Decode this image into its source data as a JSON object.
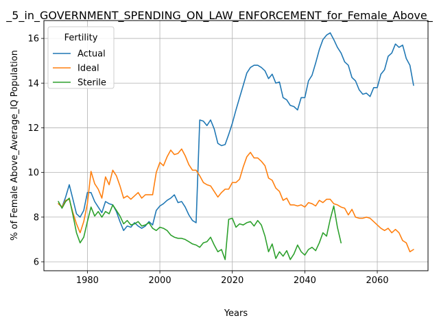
{
  "chart_data": {
    "type": "line",
    "title": "_5_in_GOVERNMENT_SPENDING_ON_LAW_ENFORCEMENT_for_Female_Above_",
    "xlabel": "Years",
    "ylabel": "% of Female Above_Average_IQ Population",
    "xlim": [
      1968,
      2074
    ],
    "ylim": [
      5.6,
      16.8
    ],
    "xticks": [
      1980,
      2000,
      2020,
      2040,
      2060
    ],
    "yticks": [
      6,
      8,
      10,
      12,
      14,
      16
    ],
    "grid": true,
    "legend": {
      "title": "Fertility",
      "placement": "top-left"
    },
    "series": [
      {
        "name": "Actual",
        "color": "#1f77b4",
        "x": [
          1972,
          1973,
          1974,
          1975,
          1976,
          1977,
          1978,
          1979,
          1980,
          1981,
          1982,
          1983,
          1984,
          1985,
          1986,
          1987,
          1988,
          1989,
          1990,
          1991,
          1992,
          1993,
          1994,
          1995,
          1996,
          1997,
          1998,
          1999,
          2000,
          2001,
          2002,
          2003,
          2004,
          2005,
          2006,
          2007,
          2008,
          2009,
          2010,
          2011,
          2012,
          2013,
          2014,
          2015,
          2016,
          2017,
          2018,
          2019,
          2020,
          2021,
          2022,
          2023,
          2024,
          2025,
          2026,
          2027,
          2028,
          2029,
          2030,
          2031,
          2032,
          2033,
          2034,
          2035,
          2036,
          2037,
          2038,
          2039,
          2040,
          2041,
          2042,
          2043,
          2044,
          2045,
          2046,
          2047,
          2048,
          2049,
          2050,
          2051,
          2052,
          2053,
          2054,
          2055,
          2056,
          2057,
          2058,
          2059,
          2060,
          2061,
          2062,
          2063,
          2064,
          2065,
          2066,
          2067,
          2068,
          2069,
          2070
        ],
        "values": [
          8.6,
          8.45,
          8.9,
          9.45,
          8.8,
          8.15,
          8.0,
          8.3,
          9.1,
          9.1,
          8.7,
          8.45,
          8.2,
          8.7,
          8.6,
          8.55,
          8.25,
          7.8,
          7.4,
          7.6,
          7.55,
          7.75,
          7.6,
          7.5,
          7.6,
          7.8,
          7.65,
          8.3,
          8.5,
          8.6,
          8.75,
          8.85,
          9.0,
          8.65,
          8.7,
          8.45,
          8.1,
          7.85,
          7.75,
          12.35,
          12.3,
          12.1,
          12.35,
          11.95,
          11.3,
          11.2,
          11.25,
          11.7,
          12.2,
          12.8,
          13.35,
          13.9,
          14.45,
          14.7,
          14.8,
          14.8,
          14.7,
          14.55,
          14.2,
          14.4,
          14.0,
          14.05,
          13.35,
          13.25,
          13.0,
          12.95,
          12.8,
          13.35,
          13.35,
          14.1,
          14.35,
          14.9,
          15.5,
          15.95,
          16.15,
          16.25,
          15.95,
          15.6,
          15.35,
          14.95,
          14.8,
          14.25,
          14.1,
          13.7,
          13.5,
          13.55,
          13.4,
          13.8,
          13.8,
          14.4,
          14.6,
          15.2,
          15.35,
          15.75,
          15.6,
          15.7,
          15.1,
          14.8,
          13.9
        ]
      },
      {
        "name": "Ideal",
        "color": "#ff7f0e",
        "x": [
          1972,
          1973,
          1974,
          1975,
          1976,
          1977,
          1978,
          1979,
          1980,
          1981,
          1982,
          1983,
          1984,
          1985,
          1986,
          1987,
          1988,
          1989,
          1990,
          1991,
          1992,
          1993,
          1994,
          1995,
          1996,
          1997,
          1998,
          1999,
          2000,
          2001,
          2002,
          2003,
          2004,
          2005,
          2006,
          2007,
          2008,
          2009,
          2010,
          2011,
          2012,
          2013,
          2014,
          2015,
          2016,
          2017,
          2018,
          2019,
          2020,
          2021,
          2022,
          2023,
          2024,
          2025,
          2026,
          2027,
          2028,
          2029,
          2030,
          2031,
          2032,
          2033,
          2034,
          2035,
          2036,
          2037,
          2038,
          2039,
          2040,
          2041,
          2042,
          2043,
          2044,
          2045,
          2046,
          2047,
          2048,
          2049,
          2050,
          2051,
          2052,
          2053,
          2054,
          2055,
          2056,
          2057,
          2058,
          2059,
          2060,
          2061,
          2062,
          2063,
          2064,
          2065,
          2066,
          2067,
          2068,
          2069,
          2070
        ],
        "values": [
          8.6,
          8.45,
          8.75,
          8.8,
          8.2,
          7.7,
          7.3,
          7.8,
          8.6,
          10.05,
          9.5,
          9.25,
          8.85,
          9.8,
          9.45,
          10.1,
          9.85,
          9.4,
          8.85,
          8.95,
          8.8,
          8.95,
          9.1,
          8.85,
          9.0,
          9.0,
          9.0,
          10.0,
          10.45,
          10.3,
          10.7,
          11.0,
          10.8,
          10.85,
          11.05,
          10.75,
          10.35,
          10.1,
          10.1,
          9.85,
          9.55,
          9.45,
          9.4,
          9.15,
          8.9,
          9.1,
          9.25,
          9.25,
          9.55,
          9.55,
          9.7,
          10.25,
          10.7,
          10.9,
          10.65,
          10.65,
          10.5,
          10.3,
          9.75,
          9.65,
          9.3,
          9.15,
          8.75,
          8.85,
          8.55,
          8.55,
          8.5,
          8.55,
          8.45,
          8.65,
          8.6,
          8.5,
          8.75,
          8.65,
          8.8,
          8.8,
          8.6,
          8.55,
          8.45,
          8.4,
          8.1,
          8.35,
          8.0,
          7.95,
          7.95,
          8.0,
          7.95,
          7.8,
          7.65,
          7.5,
          7.4,
          7.5,
          7.3,
          7.45,
          7.3,
          6.95,
          6.85,
          6.45,
          6.55
        ]
      },
      {
        "name": "Sterile",
        "color": "#2ca02c",
        "x": [
          1972,
          1973,
          1974,
          1975,
          1976,
          1977,
          1978,
          1979,
          1980,
          1981,
          1982,
          1983,
          1984,
          1985,
          1986,
          1987,
          1988,
          1989,
          1990,
          1991,
          1992,
          1993,
          1994,
          1995,
          1996,
          1997,
          1998,
          1999,
          2000,
          2001,
          2002,
          2003,
          2004,
          2005,
          2006,
          2007,
          2008,
          2009,
          2010,
          2011,
          2012,
          2013,
          2014,
          2015,
          2016,
          2017,
          2018,
          2019,
          2020,
          2021,
          2022,
          2023,
          2024,
          2025,
          2026,
          2027,
          2028,
          2029,
          2030,
          2031,
          2032,
          2033,
          2034,
          2035,
          2036,
          2037,
          2038,
          2039,
          2040,
          2041,
          2042,
          2043,
          2044,
          2045,
          2046,
          2047,
          2048,
          2049,
          2050
        ],
        "values": [
          8.7,
          8.4,
          8.7,
          8.85,
          8.1,
          7.3,
          6.85,
          7.1,
          7.8,
          8.45,
          8.05,
          8.25,
          8.0,
          8.25,
          8.15,
          8.55,
          8.3,
          8.05,
          7.7,
          7.85,
          7.65,
          7.7,
          7.8,
          7.6,
          7.65,
          7.75,
          7.5,
          7.4,
          7.55,
          7.5,
          7.4,
          7.2,
          7.1,
          7.05,
          7.05,
          7.0,
          6.9,
          6.8,
          6.75,
          6.65,
          6.85,
          6.9,
          7.1,
          6.75,
          6.45,
          6.55,
          6.1,
          7.9,
          7.95,
          7.55,
          7.7,
          7.65,
          7.75,
          7.8,
          7.6,
          7.85,
          7.65,
          7.15,
          6.45,
          6.8,
          6.15,
          6.45,
          6.25,
          6.5,
          6.1,
          6.35,
          6.75,
          6.45,
          6.3,
          6.55,
          6.65,
          6.5,
          6.85,
          7.3,
          7.15,
          7.9,
          8.5,
          7.55,
          6.85
        ]
      }
    ]
  }
}
